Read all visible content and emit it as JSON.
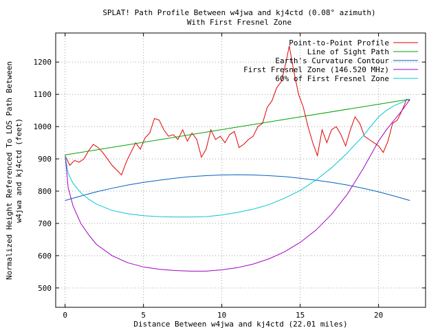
{
  "chart_data": {
    "type": "line",
    "title": "SPLAT! Path Profile Between w4jwa and kj4ctd (0.08° azimuth)",
    "subtitle": "With First Fresnel Zone",
    "xlabel": "Distance Between w4jwa and kj4ctd (22.01 miles)",
    "ylabel_line1": "Normalized Height Referenced To LOS Path Between",
    "ylabel_line2": "w4jwa and kj4ctd (feet)",
    "xlim": [
      -0.6,
      23.0
    ],
    "ylim": [
      440,
      1290
    ],
    "xticks": [
      0,
      5,
      10,
      15,
      20
    ],
    "yticks": [
      500,
      600,
      700,
      800,
      900,
      1000,
      1100,
      1200
    ],
    "grid": true,
    "legend_position": "top-right",
    "series": [
      {
        "name": "Point-to-Point Profile",
        "color": "#e00000",
        "x": [
          0.0,
          0.3,
          0.6,
          0.9,
          1.2,
          1.5,
          1.8,
          2.1,
          2.4,
          2.7,
          3.0,
          3.3,
          3.6,
          3.9,
          4.2,
          4.5,
          4.8,
          5.1,
          5.4,
          5.7,
          6.0,
          6.3,
          6.6,
          6.9,
          7.2,
          7.5,
          7.8,
          8.1,
          8.4,
          8.7,
          9.0,
          9.3,
          9.6,
          9.9,
          10.2,
          10.5,
          10.8,
          11.1,
          11.4,
          11.7,
          12.0,
          12.3,
          12.6,
          12.9,
          13.2,
          13.5,
          13.8,
          14.1,
          14.3,
          14.6,
          14.9,
          15.2,
          15.5,
          15.8,
          16.1,
          16.4,
          16.7,
          17.0,
          17.3,
          17.6,
          17.9,
          18.2,
          18.5,
          18.8,
          19.1,
          19.4,
          19.7,
          20.0,
          20.3,
          20.6,
          20.9,
          21.2,
          21.5,
          21.8,
          22.0
        ],
        "y": [
          910,
          880,
          895,
          890,
          900,
          925,
          945,
          935,
          920,
          900,
          880,
          865,
          850,
          890,
          920,
          950,
          930,
          965,
          980,
          1025,
          1020,
          990,
          970,
          975,
          960,
          990,
          955,
          980,
          960,
          905,
          930,
          990,
          960,
          970,
          950,
          975,
          985,
          935,
          945,
          960,
          970,
          1000,
          1010,
          1060,
          1080,
          1120,
          1140,
          1200,
          1250,
          1170,
          1100,
          1060,
          1000,
          950,
          910,
          990,
          950,
          990,
          1000,
          975,
          940,
          990,
          1030,
          1010,
          970,
          960,
          950,
          940,
          920,
          955,
          1010,
          1020,
          1050,
          1085,
          1080
        ]
      },
      {
        "name": "Line of Sight Path",
        "color": "#00a000",
        "x": [
          0.0,
          22.0
        ],
        "y": [
          912,
          1085
        ]
      },
      {
        "name": "Earth's Curvature Contour",
        "color": "#0060c0",
        "x": [
          0,
          1,
          2,
          3,
          4,
          5,
          6,
          7,
          8,
          9,
          10,
          11,
          12,
          13,
          14,
          15,
          16,
          17,
          18,
          19,
          20,
          21,
          22
        ],
        "y": [
          771,
          785,
          798,
          809,
          819,
          827,
          834,
          840,
          845,
          848,
          850,
          851,
          850,
          848,
          845,
          840,
          834,
          827,
          819,
          809,
          798,
          785,
          771
        ]
      },
      {
        "name": "First Fresnel Zone (146.520 MHz)",
        "color": "#a000c0",
        "x": [
          0,
          0.2,
          0.5,
          1,
          1.5,
          2,
          3,
          4,
          5,
          6,
          7,
          8,
          9,
          10,
          11,
          12,
          13,
          14,
          15,
          16,
          17,
          18,
          19,
          20,
          20.5,
          21,
          21.5,
          21.8,
          22
        ],
        "y": [
          912,
          810,
          755,
          700,
          665,
          635,
          600,
          578,
          565,
          558,
          554,
          552,
          552,
          556,
          563,
          574,
          590,
          612,
          641,
          679,
          728,
          790,
          868,
          955,
          990,
          1020,
          1050,
          1070,
          1085
        ]
      },
      {
        "name": "60% of First Fresnel Zone",
        "color": "#00c8d0",
        "x": [
          0,
          0.2,
          0.5,
          1,
          1.5,
          2,
          3,
          4,
          5,
          6,
          7,
          8,
          9,
          10,
          11,
          12,
          13,
          14,
          15,
          16,
          17,
          18,
          19,
          20,
          20.5,
          21,
          21.5,
          21.8,
          22
        ],
        "y": [
          912,
          855,
          825,
          795,
          775,
          760,
          740,
          730,
          724,
          721,
          720,
          720,
          721,
          726,
          734,
          744,
          758,
          778,
          802,
          834,
          872,
          918,
          970,
          1030,
          1050,
          1065,
          1075,
          1082,
          1085
        ]
      }
    ]
  }
}
